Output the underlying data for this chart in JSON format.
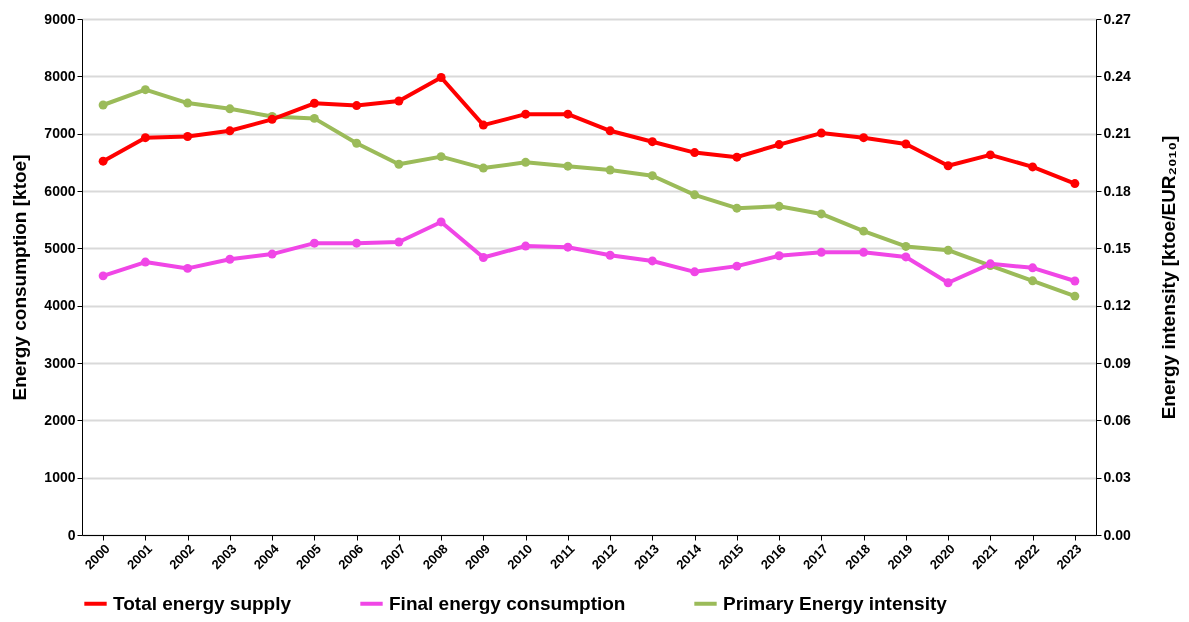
{
  "chart_data": {
    "type": "line",
    "categories": [
      "2000",
      "2001",
      "2002",
      "2003",
      "2004",
      "2005",
      "2006",
      "2007",
      "2008",
      "2009",
      "2010",
      "2011",
      "2012",
      "2013",
      "2014",
      "2015",
      "2016",
      "2017",
      "2018",
      "2019",
      "2020",
      "2021",
      "2022",
      "2023"
    ],
    "series": [
      {
        "name": "Total energy supply",
        "color": "#ff0000",
        "values": [
          6520,
          6930,
          6950,
          7050,
          7250,
          7530,
          7490,
          7570,
          7980,
          7150,
          7340,
          7340,
          7050,
          6860,
          6670,
          6590,
          6810,
          7010,
          6930,
          6820,
          6440,
          6630,
          6420,
          6130
        ]
      },
      {
        "name": "Final energy consumption",
        "color": "#f046e6",
        "values": [
          4520,
          4760,
          4650,
          4810,
          4900,
          5090,
          5090,
          5110,
          5460,
          4840,
          5040,
          5020,
          4880,
          4780,
          4590,
          4690,
          4870,
          4930,
          4930,
          4850,
          4400,
          4730,
          4660,
          4430
        ]
      },
      {
        "name": "Primary Energy intensity",
        "color": "#9bbb59",
        "axis": "y2",
        "values": [
          0.225,
          0.233,
          0.226,
          0.223,
          0.219,
          0.218,
          0.205,
          0.194,
          0.198,
          0.192,
          0.195,
          0.193,
          0.191,
          0.188,
          0.178,
          0.171,
          0.172,
          0.168,
          0.159,
          0.151,
          0.149,
          0.141,
          0.133,
          0.125
        ]
      }
    ],
    "ylabel": "Energy consumption [ktoe]",
    "y2label": "Energy intensity [ktoe/EUR₂₀₁₀]",
    "ylim": [
      0,
      9000
    ],
    "yticks": [
      0,
      1000,
      2000,
      3000,
      4000,
      5000,
      6000,
      7000,
      8000,
      9000
    ],
    "y2lim": [
      0,
      0.27
    ],
    "y2ticks": [
      {
        "value": 0,
        "label": "0.00"
      },
      {
        "value": 0.03,
        "label": "0.03"
      },
      {
        "value": 0.06,
        "label": "0.06"
      },
      {
        "value": 0.09,
        "label": "0.09"
      },
      {
        "value": 0.12,
        "label": "0.12"
      },
      {
        "value": 0.15,
        "label": "0.15"
      },
      {
        "value": 0.18,
        "label": "0.18"
      },
      {
        "value": 0.21,
        "label": "0.21"
      },
      {
        "value": 0.24,
        "label": "0.24"
      },
      {
        "value": 0.27,
        "label": "0.27"
      }
    ],
    "grid": "y",
    "legend": "bottom",
    "marker": "circle",
    "line_style": "solid"
  }
}
